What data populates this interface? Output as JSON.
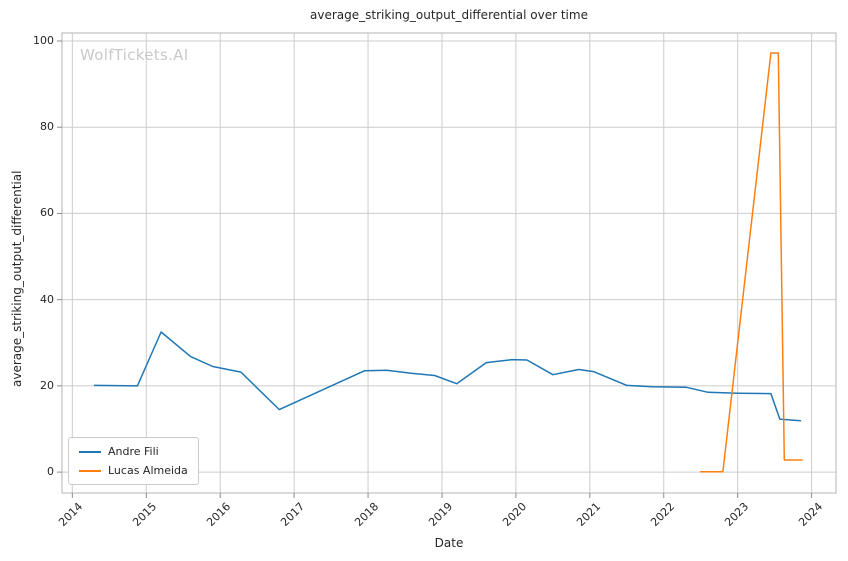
{
  "watermark": "WolfTickets.AI",
  "chart_data": {
    "type": "line",
    "title": "average_striking_output_differential over time",
    "xlabel": "Date",
    "ylabel": "average_striking_output_differential",
    "xlim": [
      2013.86,
      2024.33
    ],
    "ylim": [
      -4.85,
      101.85
    ],
    "x_ticks": [
      2014,
      2015,
      2016,
      2017,
      2018,
      2019,
      2020,
      2021,
      2022,
      2023,
      2024
    ],
    "y_ticks": [
      0,
      20,
      40,
      60,
      80,
      100
    ],
    "grid": true,
    "legend": {
      "position": "lower-left",
      "entries": [
        "Andre Fili",
        "Lucas Almeida"
      ]
    },
    "colors": {
      "andre_fili": "#1f77b4",
      "lucas_almeida": "#ff7f0e",
      "grid": "#cccccc",
      "axes_border": "#c0c0c0",
      "tick": "#8c8c8c",
      "text": "#262626",
      "watermark": "#c9c9c9",
      "background": "#ffffff"
    },
    "series": [
      {
        "name": "Andre Fili",
        "color": "#1f77b4",
        "points": [
          [
            2014.3,
            20.1
          ],
          [
            2014.88,
            20.0
          ],
          [
            2015.2,
            32.5
          ],
          [
            2015.6,
            26.8
          ],
          [
            2015.9,
            24.5
          ],
          [
            2016.28,
            23.2
          ],
          [
            2016.8,
            14.5
          ],
          [
            2017.95,
            23.5
          ],
          [
            2018.25,
            23.6
          ],
          [
            2018.6,
            22.9
          ],
          [
            2018.9,
            22.4
          ],
          [
            2019.2,
            20.5
          ],
          [
            2019.6,
            25.4
          ],
          [
            2019.95,
            26.1
          ],
          [
            2020.15,
            26.0
          ],
          [
            2020.5,
            22.6
          ],
          [
            2020.85,
            23.8
          ],
          [
            2021.05,
            23.3
          ],
          [
            2021.5,
            20.1
          ],
          [
            2021.85,
            19.8
          ],
          [
            2022.3,
            19.7
          ],
          [
            2022.6,
            18.5
          ],
          [
            2023.0,
            18.3
          ],
          [
            2023.45,
            18.2
          ],
          [
            2023.57,
            12.3
          ],
          [
            2023.85,
            11.9
          ]
        ]
      },
      {
        "name": "Lucas Almeida",
        "color": "#ff7f0e",
        "points": [
          [
            2022.5,
            0.1
          ],
          [
            2022.8,
            0.1
          ],
          [
            2023.45,
            97.2
          ],
          [
            2023.55,
            97.2
          ],
          [
            2023.63,
            2.8
          ],
          [
            2023.87,
            2.8
          ]
        ]
      }
    ]
  }
}
